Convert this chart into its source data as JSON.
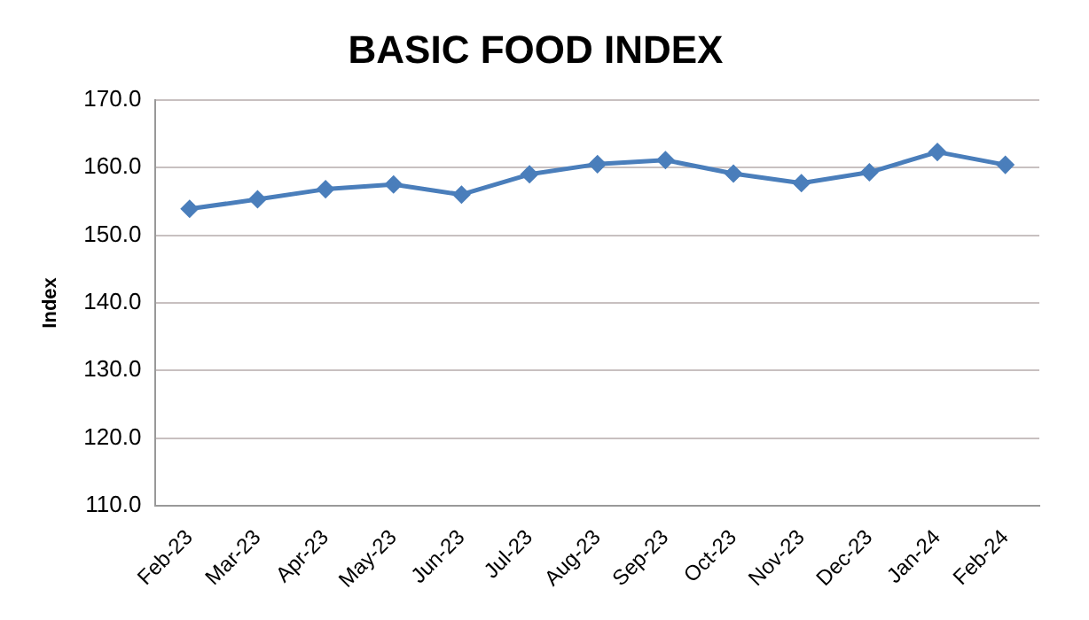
{
  "chart_data": {
    "type": "line",
    "title": "BASIC FOOD INDEX",
    "ylabel": "Index",
    "categories": [
      "Feb-23",
      "Mar-23",
      "Apr-23",
      "May-23",
      "Jun-23",
      "Jul-23",
      "Aug-23",
      "Sep-23",
      "Oct-23",
      "Nov-23",
      "Dec-23",
      "Jan-24",
      "Feb-24"
    ],
    "series": [
      {
        "color": "#4a7ebb",
        "values": [
          153.9,
          155.3,
          156.8,
          157.5,
          156.0,
          159.0,
          160.5,
          161.1,
          159.1,
          157.7,
          159.3,
          162.3,
          160.4
        ]
      }
    ],
    "ylim": [
      110,
      170
    ],
    "yticks": [
      {
        "value": 110,
        "label": "110.0"
      },
      {
        "value": 120,
        "label": "120.0"
      },
      {
        "value": 130,
        "label": "130.0"
      },
      {
        "value": 140,
        "label": "140.0"
      },
      {
        "value": 150,
        "label": "150.0"
      },
      {
        "value": 160,
        "label": "160.0"
      },
      {
        "value": 170,
        "label": "170.0"
      }
    ],
    "grid": "y",
    "marker": "diamond",
    "line_style": "solid",
    "legend": false
  }
}
